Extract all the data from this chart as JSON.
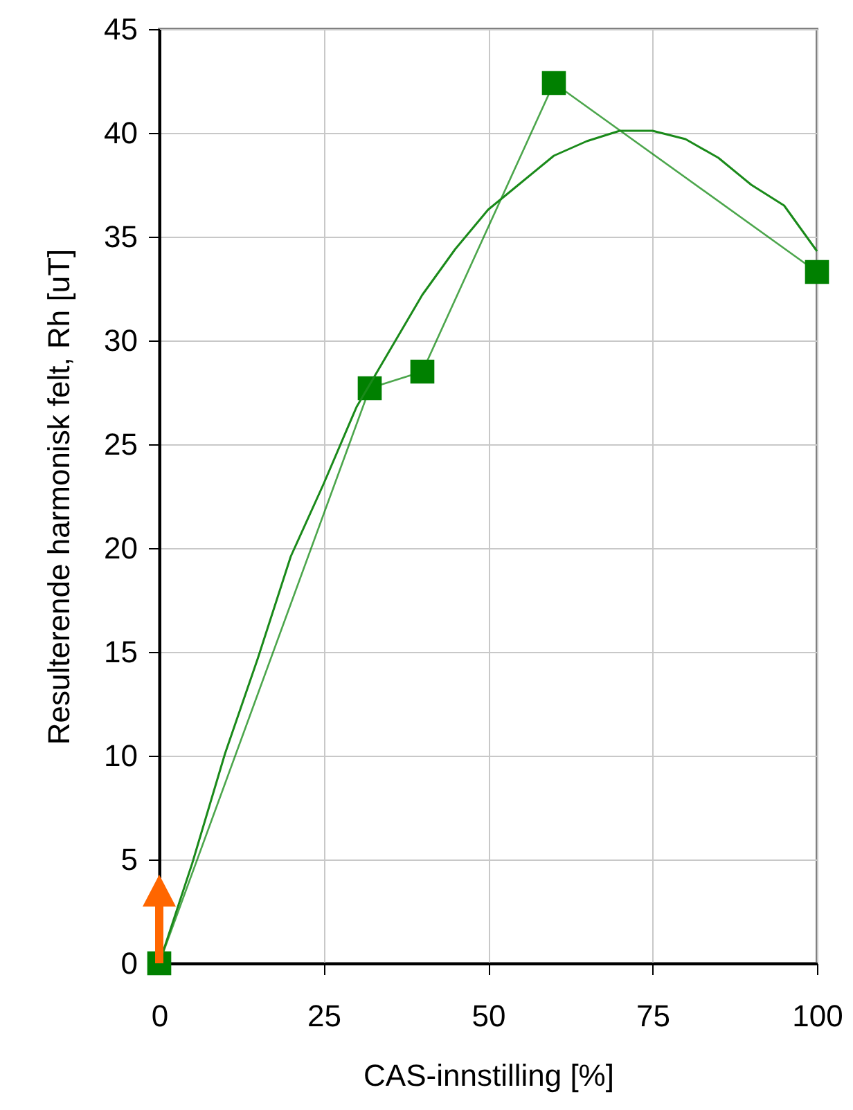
{
  "chart_data": {
    "type": "line",
    "xlabel": "CAS-innstilling  [%]",
    "ylabel": "Resulterende harmonisk felt, Rh  [uT]",
    "xlim": [
      0,
      100
    ],
    "xticks": [
      0,
      25,
      50,
      75,
      100
    ],
    "ylim": [
      0,
      45
    ],
    "yticks": [
      0,
      5,
      10,
      15,
      20,
      25,
      30,
      35,
      40,
      45
    ],
    "grid": true,
    "marker": "square",
    "line_style": "solid",
    "series": [
      {
        "color": "#008000",
        "x": [
          0,
          32,
          40,
          60,
          100
        ],
        "values": [
          0,
          27.7,
          28.5,
          42.4,
          33.3
        ]
      },
      {
        "color": "#1a8a1a",
        "marker": "none",
        "x": [
          0,
          5,
          10,
          15,
          20,
          25,
          30,
          35,
          40,
          45,
          50,
          55,
          60,
          65,
          70,
          75,
          80,
          85,
          90,
          95,
          100
        ],
        "values": [
          0,
          4.8,
          10.1,
          14.7,
          19.6,
          23.1,
          26.8,
          29.5,
          32.2,
          34.4,
          36.3,
          37.6,
          38.9,
          39.6,
          40.1,
          40.1,
          39.7,
          38.8,
          37.5,
          36.5,
          34.3
        ]
      }
    ]
  }
}
